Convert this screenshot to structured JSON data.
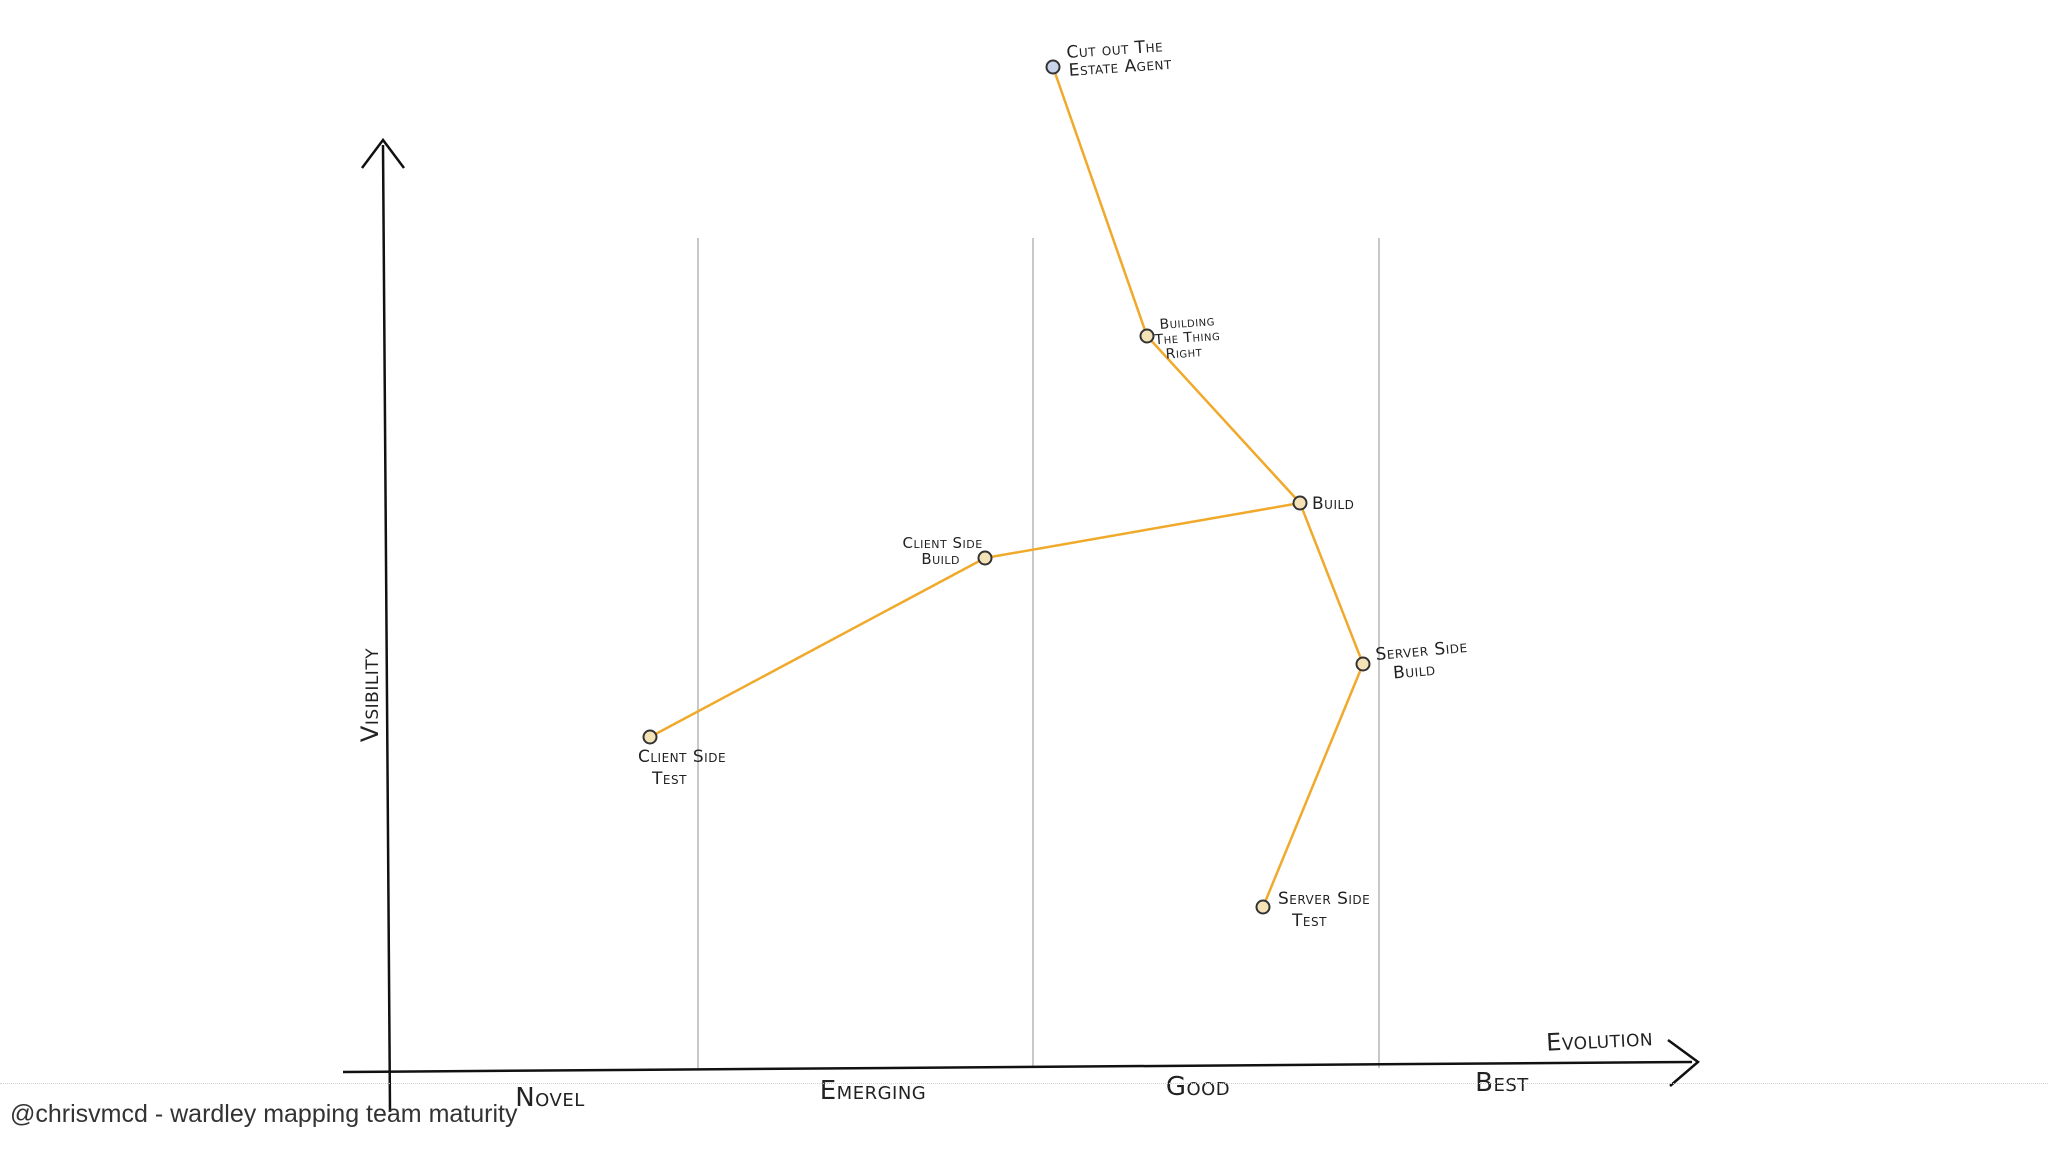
{
  "map": {
    "axes": {
      "y_label": "Visibility",
      "x_label": "Evolution"
    },
    "stages": [
      "Novel",
      "Emerging",
      "Good",
      "Best"
    ],
    "colors": {
      "link": "#f0a92a",
      "node_stroke": "#333333",
      "node_fill": "#f5e3b8",
      "anchor_fill": "#c9d3ea",
      "stage_line": "#c8c8c8",
      "axis": "#111111"
    },
    "nodes": [
      {
        "id": "cut-out-estate-agent",
        "lines": [
          "Cut out The",
          "Estate Agent"
        ]
      },
      {
        "id": "building-thing-right",
        "lines": [
          "Building",
          "The Thing",
          "Right"
        ]
      },
      {
        "id": "build",
        "lines": [
          "Build"
        ]
      },
      {
        "id": "client-side-build",
        "lines": [
          "Client Side",
          "Build"
        ]
      },
      {
        "id": "client-side-test",
        "lines": [
          "Client Side",
          "Test"
        ]
      },
      {
        "id": "server-side-build",
        "lines": [
          "Server Side",
          "Build"
        ]
      },
      {
        "id": "server-side-test",
        "lines": [
          "Server Side",
          "Test"
        ]
      }
    ],
    "links": [
      [
        "cut-out-estate-agent",
        "building-thing-right"
      ],
      [
        "building-thing-right",
        "build"
      ],
      [
        "build",
        "client-side-build"
      ],
      [
        "client-side-build",
        "client-side-test"
      ],
      [
        "build",
        "server-side-build"
      ],
      [
        "server-side-build",
        "server-side-test"
      ]
    ]
  },
  "footer": {
    "credit": "@chrisvmcd - wardley mapping team maturity"
  }
}
